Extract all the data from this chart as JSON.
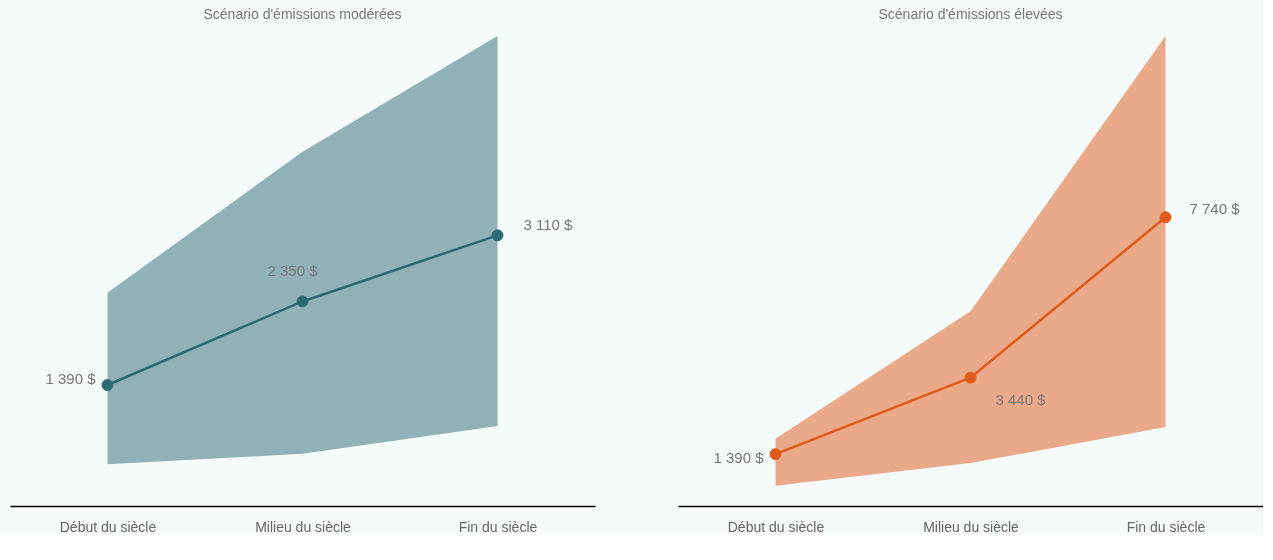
{
  "chart_data": [
    {
      "type": "line",
      "title": "Scénario d'émissions modérées",
      "categories": [
        "Début du siècle",
        "Milieu du siècle",
        "Fin du siècle"
      ],
      "marker": "circle",
      "grid": false,
      "series": [
        {
          "color": "#2a6b73",
          "values": [
            1390,
            2350,
            3110
          ],
          "lower": [
            480,
            600,
            920
          ],
          "upper": [
            2450,
            4070,
            5400
          ],
          "value_labels": [
            "1 390 $",
            "2 350 $",
            "3 110 $"
          ]
        }
      ]
    },
    {
      "type": "line",
      "title": "Scénario d'émissions élevées",
      "categories": [
        "Début du siècle",
        "Milieu du siècle",
        "Fin du siècle"
      ],
      "marker": "circle",
      "grid": false,
      "series": [
        {
          "color": "#e05a1a",
          "values": [
            1390,
            3440,
            7740
          ],
          "lower": [
            540,
            1150,
            2120
          ],
          "upper": [
            1800,
            5220,
            12600
          ],
          "value_labels": [
            "1 390 $",
            "3 440 $",
            "7 740 $"
          ]
        }
      ]
    }
  ]
}
